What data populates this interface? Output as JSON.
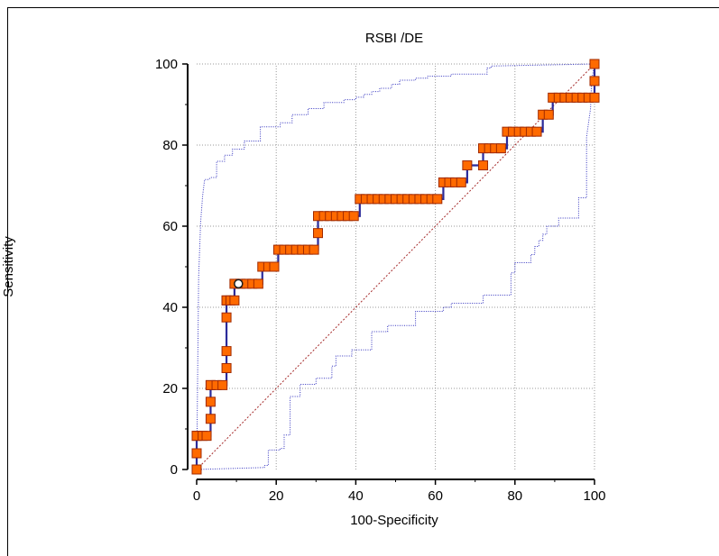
{
  "chart_data": {
    "type": "line",
    "title": "RSBI /DE",
    "xlabel": "100-Specificity",
    "ylabel": "Sensitivity",
    "xlim": [
      0,
      100
    ],
    "ylim": [
      0,
      100
    ],
    "xticks": [
      "0",
      "20",
      "40",
      "60",
      "80",
      "100"
    ],
    "yticks": [
      "0",
      "20",
      "40",
      "60",
      "80",
      "100"
    ],
    "grid": true,
    "colors": {
      "roc": "#2b2b9a",
      "marker_fill": "#ff6a00",
      "marker_edge": "#a02a00",
      "ci": "#3535c0",
      "diagonal": "#a52a2a",
      "grid": "#9a9a9a"
    },
    "series": [
      {
        "name": "ROC",
        "style": "step-with-markers",
        "x": [
          0,
          0,
          0,
          0,
          1.5,
          2.5,
          3.5,
          3.5,
          3.5,
          3.5,
          5,
          6.5,
          7.5,
          7.5,
          7.5,
          7.5,
          7.5,
          8.5,
          9.5,
          9.5,
          11,
          12.5,
          14,
          15.5,
          16.5,
          18,
          19.5,
          20.5,
          22,
          23.5,
          25,
          26.5,
          28,
          29.5,
          30.5,
          30.5,
          32,
          33.5,
          35,
          36.5,
          38,
          39.5,
          41,
          42.5,
          44,
          45.5,
          47,
          48.5,
          50,
          51.5,
          53,
          54.5,
          56,
          57.5,
          59,
          60.5,
          62,
          63.5,
          65,
          66.5,
          68,
          72,
          72,
          73.5,
          75,
          76.5,
          78,
          79.5,
          81,
          82.5,
          84,
          85.5,
          87,
          88.5,
          89.5,
          91,
          92.5,
          94,
          95.5,
          97,
          98.5,
          100,
          100,
          100
        ],
        "y": [
          0,
          4,
          8.3,
          8.3,
          8.3,
          8.3,
          12.5,
          16.7,
          20.8,
          20.8,
          20.8,
          20.8,
          25,
          29.2,
          37.5,
          41.7,
          41.7,
          41.7,
          41.7,
          45.8,
          45.8,
          45.8,
          45.8,
          45.8,
          50,
          50,
          50,
          54.2,
          54.2,
          54.2,
          54.2,
          54.2,
          54.2,
          54.2,
          58.3,
          62.5,
          62.5,
          62.5,
          62.5,
          62.5,
          62.5,
          62.5,
          66.7,
          66.7,
          66.7,
          66.7,
          66.7,
          66.7,
          66.7,
          66.7,
          66.7,
          66.7,
          66.7,
          66.7,
          66.7,
          66.7,
          70.8,
          70.8,
          70.8,
          70.8,
          75,
          75,
          79.2,
          79.2,
          79.2,
          79.2,
          83.3,
          83.3,
          83.3,
          83.3,
          83.3,
          83.3,
          87.5,
          87.5,
          91.7,
          91.7,
          91.7,
          91.7,
          91.7,
          91.7,
          91.7,
          91.7,
          95.8,
          100
        ]
      }
    ],
    "criterion_point": {
      "x": 10.5,
      "y": 45.8
    },
    "ci_upper": {
      "x": [
        0,
        0.5,
        1,
        1.5,
        2,
        2.5,
        3,
        3.5,
        5,
        5,
        7,
        7,
        9,
        9,
        12,
        12,
        16,
        16,
        19,
        19,
        21,
        21,
        24,
        24,
        28,
        28,
        32,
        32,
        37,
        37,
        40,
        40,
        42,
        42,
        44,
        44,
        46,
        46,
        49,
        49,
        51,
        51,
        55,
        55,
        58,
        58,
        64,
        64,
        73,
        73,
        74,
        74,
        100
      ],
      "y": [
        0,
        47.5,
        61,
        67.5,
        71.5,
        71.5,
        71.5,
        72,
        72,
        76,
        76,
        77.5,
        77.5,
        79,
        79,
        81,
        81,
        84.5,
        84.5,
        84.5,
        84.5,
        85.5,
        85.5,
        87.5,
        87.5,
        89,
        89,
        90.5,
        90.5,
        91.2,
        91.2,
        91.8,
        91.8,
        92.5,
        92.5,
        93.2,
        93.2,
        94,
        94,
        95,
        95,
        96,
        96,
        96.5,
        96.5,
        97,
        97,
        97.5,
        97.5,
        99,
        99,
        99.5,
        100
      ]
    },
    "ci_lower": {
      "x": [
        0,
        17,
        17,
        18,
        18,
        21,
        21,
        22,
        22,
        23.5,
        23.5,
        26,
        26,
        30,
        30,
        34,
        34,
        35,
        35,
        39,
        39,
        44,
        44,
        48,
        48,
        55,
        55,
        62,
        62,
        64,
        64,
        72,
        72,
        79,
        79,
        80,
        80,
        84,
        84,
        85,
        85,
        86,
        86,
        87,
        87,
        88,
        88,
        91,
        91,
        96,
        96,
        98,
        98,
        99,
        99.3,
        100
      ],
      "y": [
        0,
        0.5,
        1,
        1,
        4.8,
        4.8,
        5.2,
        5.2,
        8.5,
        8.5,
        18,
        18,
        21,
        21,
        22.5,
        22.5,
        25.5,
        25.5,
        28,
        28,
        29.5,
        29.5,
        34,
        34,
        35.5,
        35.5,
        39,
        39,
        40,
        40,
        41,
        41,
        43,
        43,
        48.5,
        48.5,
        51,
        51,
        53,
        53,
        55,
        55,
        56.5,
        56.5,
        58,
        58,
        60,
        60,
        62,
        62,
        67,
        67,
        82,
        89,
        96,
        100
      ]
    }
  }
}
